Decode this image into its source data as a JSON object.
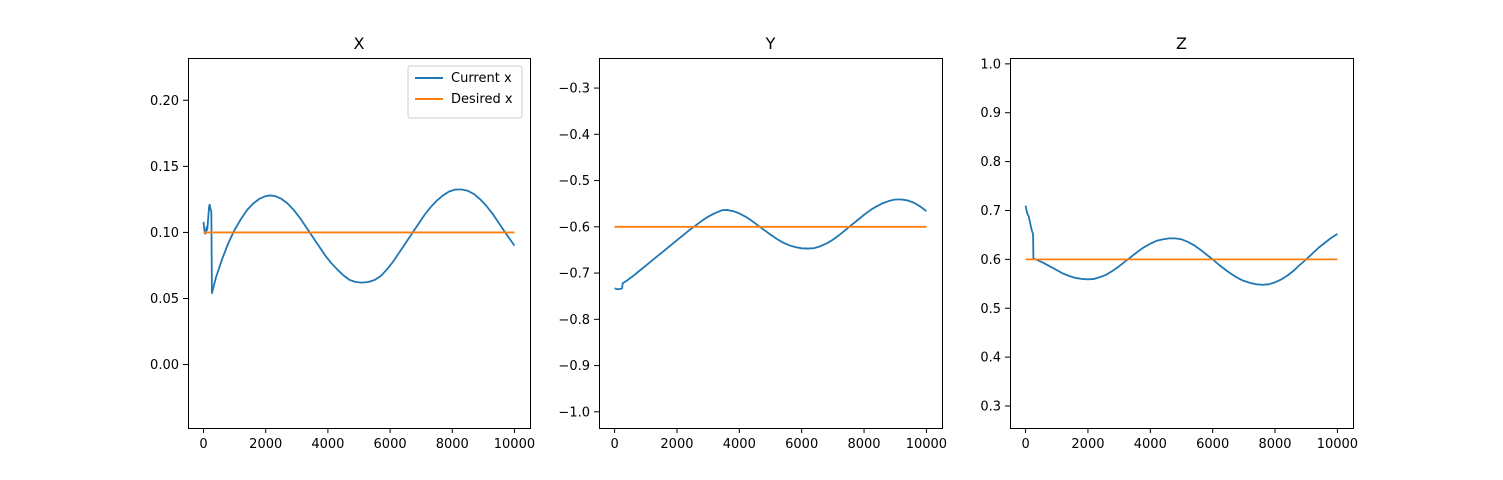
{
  "chart_data": [
    {
      "type": "line",
      "title": "X",
      "xlabel": "",
      "ylabel": "",
      "xlim": [
        -500,
        10500
      ],
      "ylim": [
        -0.048,
        0.232
      ],
      "xticks": [
        0,
        2000,
        4000,
        6000,
        8000,
        10000
      ],
      "yticks": [
        0.0,
        0.05,
        0.1,
        0.15,
        0.2
      ],
      "ytick_labels": [
        "0.00",
        "0.05",
        "0.10",
        "0.15",
        "0.20"
      ],
      "grid": false,
      "legend": "top-right",
      "series": [
        {
          "name": "Current x",
          "color": "#1f77b4",
          "points": [
            [
              0,
              0.108
            ],
            [
              20,
              0.103
            ],
            [
              40,
              0.1
            ],
            [
              60,
              0.099
            ],
            [
              80,
              0.101
            ],
            [
              100,
              0.104
            ],
            [
              120,
              0.102
            ],
            [
              140,
              0.108
            ],
            [
              160,
              0.114
            ],
            [
              180,
              0.12
            ],
            [
              200,
              0.121
            ],
            [
              220,
              0.118
            ],
            [
              250,
              0.116
            ],
            [
              270,
              0.054
            ],
            [
              400,
              0.066
            ],
            [
              600,
              0.08
            ],
            [
              800,
              0.092
            ],
            [
              1000,
              0.102
            ],
            [
              1200,
              0.11
            ],
            [
              1400,
              0.117
            ],
            [
              1600,
              0.122
            ],
            [
              1800,
              0.1255
            ],
            [
              2000,
              0.1275
            ],
            [
              2150,
              0.128
            ],
            [
              2300,
              0.1275
            ],
            [
              2500,
              0.1255
            ],
            [
              2700,
              0.122
            ],
            [
              2900,
              0.117
            ],
            [
              3100,
              0.111
            ],
            [
              3300,
              0.104
            ],
            [
              3500,
              0.097
            ],
            [
              3700,
              0.09
            ],
            [
              3900,
              0.083
            ],
            [
              4100,
              0.077
            ],
            [
              4300,
              0.072
            ],
            [
              4500,
              0.0675
            ],
            [
              4700,
              0.064
            ],
            [
              4900,
              0.0625
            ],
            [
              5100,
              0.062
            ],
            [
              5300,
              0.0625
            ],
            [
              5500,
              0.064
            ],
            [
              5700,
              0.067
            ],
            [
              5900,
              0.072
            ],
            [
              6100,
              0.078
            ],
            [
              6300,
              0.085
            ],
            [
              6500,
              0.092
            ],
            [
              6700,
              0.099
            ],
            [
              6900,
              0.106
            ],
            [
              7100,
              0.113
            ],
            [
              7300,
              0.119
            ],
            [
              7500,
              0.124
            ],
            [
              7700,
              0.128
            ],
            [
              7900,
              0.131
            ],
            [
              8100,
              0.1325
            ],
            [
              8300,
              0.1325
            ],
            [
              8500,
              0.1315
            ],
            [
              8700,
              0.129
            ],
            [
              8900,
              0.125
            ],
            [
              9100,
              0.12
            ],
            [
              9300,
              0.114
            ],
            [
              9500,
              0.107
            ],
            [
              9700,
              0.1
            ],
            [
              9850,
              0.095
            ],
            [
              10000,
              0.09
            ]
          ]
        },
        {
          "name": "Desired x",
          "color": "#ff7f0e",
          "points": [
            [
              0,
              0.1
            ],
            [
              10000,
              0.1
            ]
          ]
        }
      ]
    },
    {
      "type": "line",
      "title": "Y",
      "xlabel": "",
      "ylabel": "",
      "xlim": [
        -500,
        10500
      ],
      "ylim": [
        -1.035,
        -0.235
      ],
      "xticks": [
        0,
        2000,
        4000,
        6000,
        8000,
        10000
      ],
      "yticks": [
        -1.0,
        -0.9,
        -0.8,
        -0.7,
        -0.6,
        -0.5,
        -0.4,
        -0.3
      ],
      "ytick_labels": [
        "−1.0",
        "−0.9",
        "−0.8",
        "−0.7",
        "−0.6",
        "−0.5",
        "−0.4",
        "−0.3"
      ],
      "grid": false,
      "series": [
        {
          "name": "",
          "color": "#1f77b4",
          "points": [
            [
              0,
              -0.733
            ],
            [
              100,
              -0.735
            ],
            [
              200,
              -0.734
            ],
            [
              240,
              -0.733
            ],
            [
              260,
              -0.722
            ],
            [
              400,
              -0.716
            ],
            [
              600,
              -0.706
            ],
            [
              800,
              -0.695
            ],
            [
              1000,
              -0.684
            ],
            [
              1200,
              -0.673
            ],
            [
              1400,
              -0.662
            ],
            [
              1600,
              -0.651
            ],
            [
              1800,
              -0.64
            ],
            [
              2000,
              -0.629
            ],
            [
              2200,
              -0.618
            ],
            [
              2400,
              -0.607
            ],
            [
              2600,
              -0.597
            ],
            [
              2800,
              -0.587
            ],
            [
              3000,
              -0.578
            ],
            [
              3200,
              -0.571
            ],
            [
              3450,
              -0.564
            ],
            [
              3600,
              -0.5635
            ],
            [
              3800,
              -0.566
            ],
            [
              4000,
              -0.571
            ],
            [
              4200,
              -0.578
            ],
            [
              4400,
              -0.587
            ],
            [
              4600,
              -0.597
            ],
            [
              4800,
              -0.607
            ],
            [
              5000,
              -0.617
            ],
            [
              5200,
              -0.626
            ],
            [
              5400,
              -0.634
            ],
            [
              5600,
              -0.64
            ],
            [
              5800,
              -0.644
            ],
            [
              6000,
              -0.6465
            ],
            [
              6200,
              -0.647
            ],
            [
              6400,
              -0.646
            ],
            [
              6600,
              -0.642
            ],
            [
              6800,
              -0.636
            ],
            [
              7000,
              -0.628
            ],
            [
              7200,
              -0.618
            ],
            [
              7400,
              -0.607
            ],
            [
              7600,
              -0.596
            ],
            [
              7800,
              -0.585
            ],
            [
              8000,
              -0.574
            ],
            [
              8200,
              -0.564
            ],
            [
              8400,
              -0.556
            ],
            [
              8600,
              -0.549
            ],
            [
              8800,
              -0.544
            ],
            [
              9000,
              -0.541
            ],
            [
              9200,
              -0.541
            ],
            [
              9400,
              -0.543
            ],
            [
              9600,
              -0.548
            ],
            [
              9800,
              -0.556
            ],
            [
              10000,
              -0.566
            ]
          ]
        },
        {
          "name": "",
          "color": "#ff7f0e",
          "points": [
            [
              0,
              -0.6
            ],
            [
              10000,
              -0.6
            ]
          ]
        }
      ]
    },
    {
      "type": "line",
      "title": "Z",
      "xlabel": "",
      "ylabel": "",
      "xlim": [
        -500,
        10500
      ],
      "ylim": [
        0.255,
        1.012
      ],
      "xticks": [
        0,
        2000,
        4000,
        6000,
        8000,
        10000
      ],
      "yticks": [
        0.3,
        0.4,
        0.5,
        0.6,
        0.7,
        0.8,
        0.9,
        1.0
      ],
      "ytick_labels": [
        "0.3",
        "0.4",
        "0.5",
        "0.6",
        "0.7",
        "0.8",
        "0.9",
        "1.0"
      ],
      "grid": false,
      "series": [
        {
          "name": "",
          "color": "#1f77b4",
          "points": [
            [
              0,
              0.71
            ],
            [
              30,
              0.7
            ],
            [
              60,
              0.693
            ],
            [
              100,
              0.688
            ],
            [
              140,
              0.676
            ],
            [
              180,
              0.664
            ],
            [
              210,
              0.657
            ],
            [
              240,
              0.652
            ],
            [
              250,
              0.602
            ],
            [
              400,
              0.598
            ],
            [
              600,
              0.592
            ],
            [
              800,
              0.585
            ],
            [
              1000,
              0.578
            ],
            [
              1200,
              0.571
            ],
            [
              1400,
              0.566
            ],
            [
              1600,
              0.562
            ],
            [
              1800,
              0.56
            ],
            [
              2000,
              0.559
            ],
            [
              2200,
              0.56
            ],
            [
              2400,
              0.564
            ],
            [
              2600,
              0.569
            ],
            [
              2800,
              0.577
            ],
            [
              3000,
              0.586
            ],
            [
              3200,
              0.596
            ],
            [
              3400,
              0.606
            ],
            [
              3600,
              0.616
            ],
            [
              3800,
              0.625
            ],
            [
              4000,
              0.632
            ],
            [
              4200,
              0.638
            ],
            [
              4400,
              0.641
            ],
            [
              4600,
              0.643
            ],
            [
              4800,
              0.643
            ],
            [
              5000,
              0.641
            ],
            [
              5200,
              0.636
            ],
            [
              5400,
              0.629
            ],
            [
              5600,
              0.62
            ],
            [
              5800,
              0.61
            ],
            [
              6000,
              0.6
            ],
            [
              6200,
              0.589
            ],
            [
              6400,
              0.579
            ],
            [
              6600,
              0.57
            ],
            [
              6800,
              0.562
            ],
            [
              7000,
              0.556
            ],
            [
              7200,
              0.552
            ],
            [
              7400,
              0.549
            ],
            [
              7600,
              0.548
            ],
            [
              7800,
              0.549
            ],
            [
              8000,
              0.553
            ],
            [
              8200,
              0.559
            ],
            [
              8400,
              0.567
            ],
            [
              8600,
              0.577
            ],
            [
              8800,
              0.589
            ],
            [
              9000,
              0.6
            ],
            [
              9200,
              0.612
            ],
            [
              9400,
              0.624
            ],
            [
              9600,
              0.634
            ],
            [
              9800,
              0.644
            ],
            [
              10000,
              0.652
            ]
          ]
        },
        {
          "name": "",
          "color": "#ff7f0e",
          "points": [
            [
              0,
              0.6
            ],
            [
              10000,
              0.6
            ]
          ]
        }
      ]
    }
  ]
}
